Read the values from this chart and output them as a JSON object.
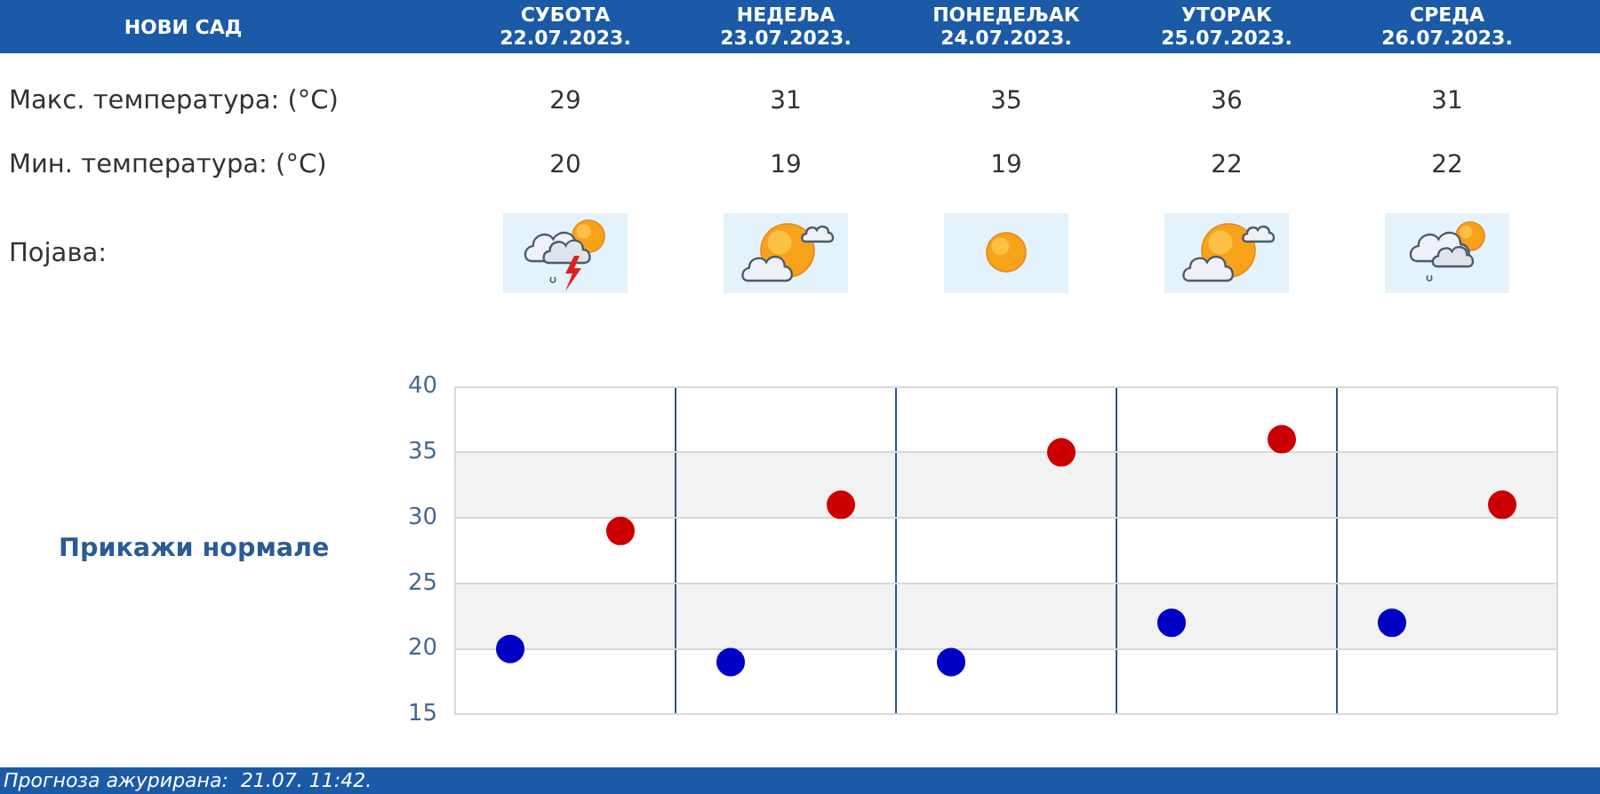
{
  "chart_data": {
    "type": "scatter",
    "title": "НОВИ САД",
    "categories": [
      null,
      null,
      null,
      null,
      null
    ],
    "series": [
      {
        "color": "#cc0000",
        "values": [
          29,
          31,
          35,
          36,
          31
        ]
      },
      {
        "color": "#0000c4",
        "values": [
          20,
          19,
          19,
          22,
          22
        ]
      }
    ],
    "ylim": [
      15,
      40
    ],
    "yticks": [
      15,
      20,
      25,
      30,
      35,
      40
    ],
    "grid": true,
    "bands": [
      {
        "axis": "y",
        "from": 20,
        "to": 25,
        "color": "#f2f2f2"
      },
      {
        "axis": "y",
        "from": 30,
        "to": 35,
        "color": "#f2f2f2"
      }
    ],
    "marker": "circle",
    "data_labels": true,
    "tick_labels": "y",
    "annotations": [
      "СУБОТА\n22.07.2023.",
      "НЕДЕЉА\n23.07.2023.",
      "ПОНЕДЕЉАК\n24.07.2023.",
      "УТОРАК\n25.07.2023.",
      "СРЕДА\n26.07.2023.",
      "Макс. температура: (°C)",
      "Мин. температура: (°C)",
      "Појава:",
      "Прикажи нормале",
      "Прогноза ажурирана:  21.07. 11:42."
    ]
  }
}
